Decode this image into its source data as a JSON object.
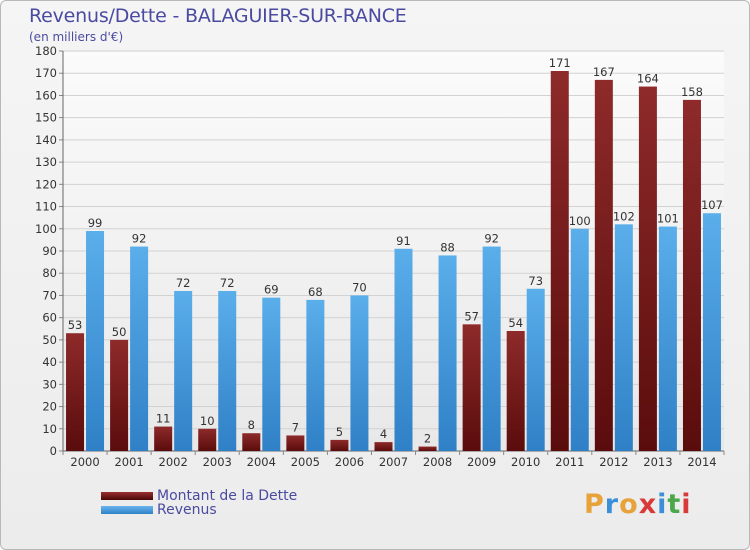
{
  "chart_data": {
    "type": "bar",
    "title": "Revenus/Dette - BALAGUIER-SUR-RANCE",
    "subtitle": "(en milliers d'€)",
    "categories": [
      "2000",
      "2001",
      "2002",
      "2003",
      "2004",
      "2005",
      "2006",
      "2007",
      "2008",
      "2009",
      "2010",
      "2011",
      "2012",
      "2013",
      "2014"
    ],
    "series": [
      {
        "name": "Montant de la Dette",
        "color": "#7a1a1a",
        "values": [
          53,
          50,
          11,
          10,
          8,
          7,
          5,
          4,
          2,
          57,
          54,
          171,
          167,
          164,
          158
        ]
      },
      {
        "name": "Revenus",
        "color": "#4d9fe0",
        "values": [
          99,
          92,
          72,
          72,
          69,
          68,
          70,
          91,
          88,
          92,
          73,
          100,
          102,
          101,
          107
        ]
      }
    ],
    "ylim": [
      0,
      180
    ],
    "yticks": [
      0,
      10,
      20,
      30,
      40,
      50,
      60,
      70,
      80,
      90,
      100,
      110,
      120,
      130,
      140,
      150,
      160,
      170,
      180
    ],
    "grid": true,
    "legend_position": "bottom-left"
  },
  "logo": {
    "letters": [
      "P",
      "r",
      "o",
      "x",
      "i",
      "t",
      "i"
    ],
    "colors": [
      "#e8a23a",
      "#3a8fd8",
      "#e8a23a",
      "#d83a3a",
      "#3a8fd8",
      "#4aa84a",
      "#d83a3a"
    ]
  }
}
